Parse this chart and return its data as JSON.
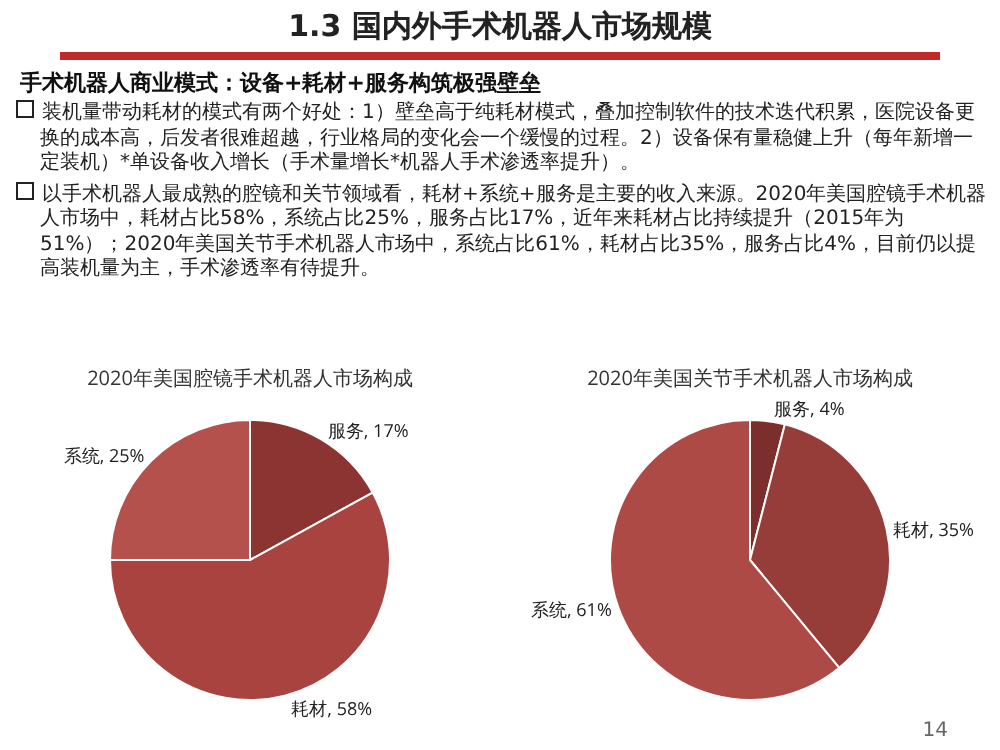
{
  "chart_data": [
    {
      "type": "pie",
      "title": "2020年美国腔镜手术机器人市场构成",
      "categories": [
        "服务",
        "耗材",
        "系统"
      ],
      "values": [
        17,
        58,
        25
      ],
      "colors": [
        "#8c3431",
        "#a8433f",
        "#b4514d"
      ],
      "value_labels": [
        "17%",
        "58%",
        "25%"
      ],
      "legend": false,
      "annotations": [
        "1.3  国内外手术机器人市场规模",
        "手术机器人商业模式：设备+耗材+服务构筑极强壁垒",
        "装机量带动耗材的模式有两个好处：1）壁垒高于纯耗材模式，叠加控制软件的技术迭代积累，医院设备更换的成本高，后发者很难超越，行业格局的变化会一个缓慢的过程。2）设备保有量稳健上升（每年新增一定装机）*单设备收入增长（手术量增长*机器人手术渗透率提升）。",
        "以手术机器人最成熟的腔镜和关节领域看，耗材+系统+服务是主要的收入来源。2020年美国腔镜手术机器人市场中，耗材占比58%，系统占比25%，服务占比17%，近年来耗材占比持续提升（2015年为51%）；2020年美国关节手术机器人市场中，系统占比61%，耗材占比35%，服务占比4%，目前仍以提高装机量为主，手术渗透率有待提升。"
      ]
    },
    {
      "type": "pie",
      "title": "2020年美国关节手术机器人市场构成",
      "categories": [
        "服务",
        "耗材",
        "系统"
      ],
      "values": [
        4,
        35,
        61
      ],
      "colors": [
        "#7c2e2c",
        "#963c39",
        "#ad4a46"
      ],
      "value_labels": [
        "4%",
        "35%",
        "61%"
      ],
      "legend": false,
      "annotations": [
        "14"
      ]
    }
  ]
}
